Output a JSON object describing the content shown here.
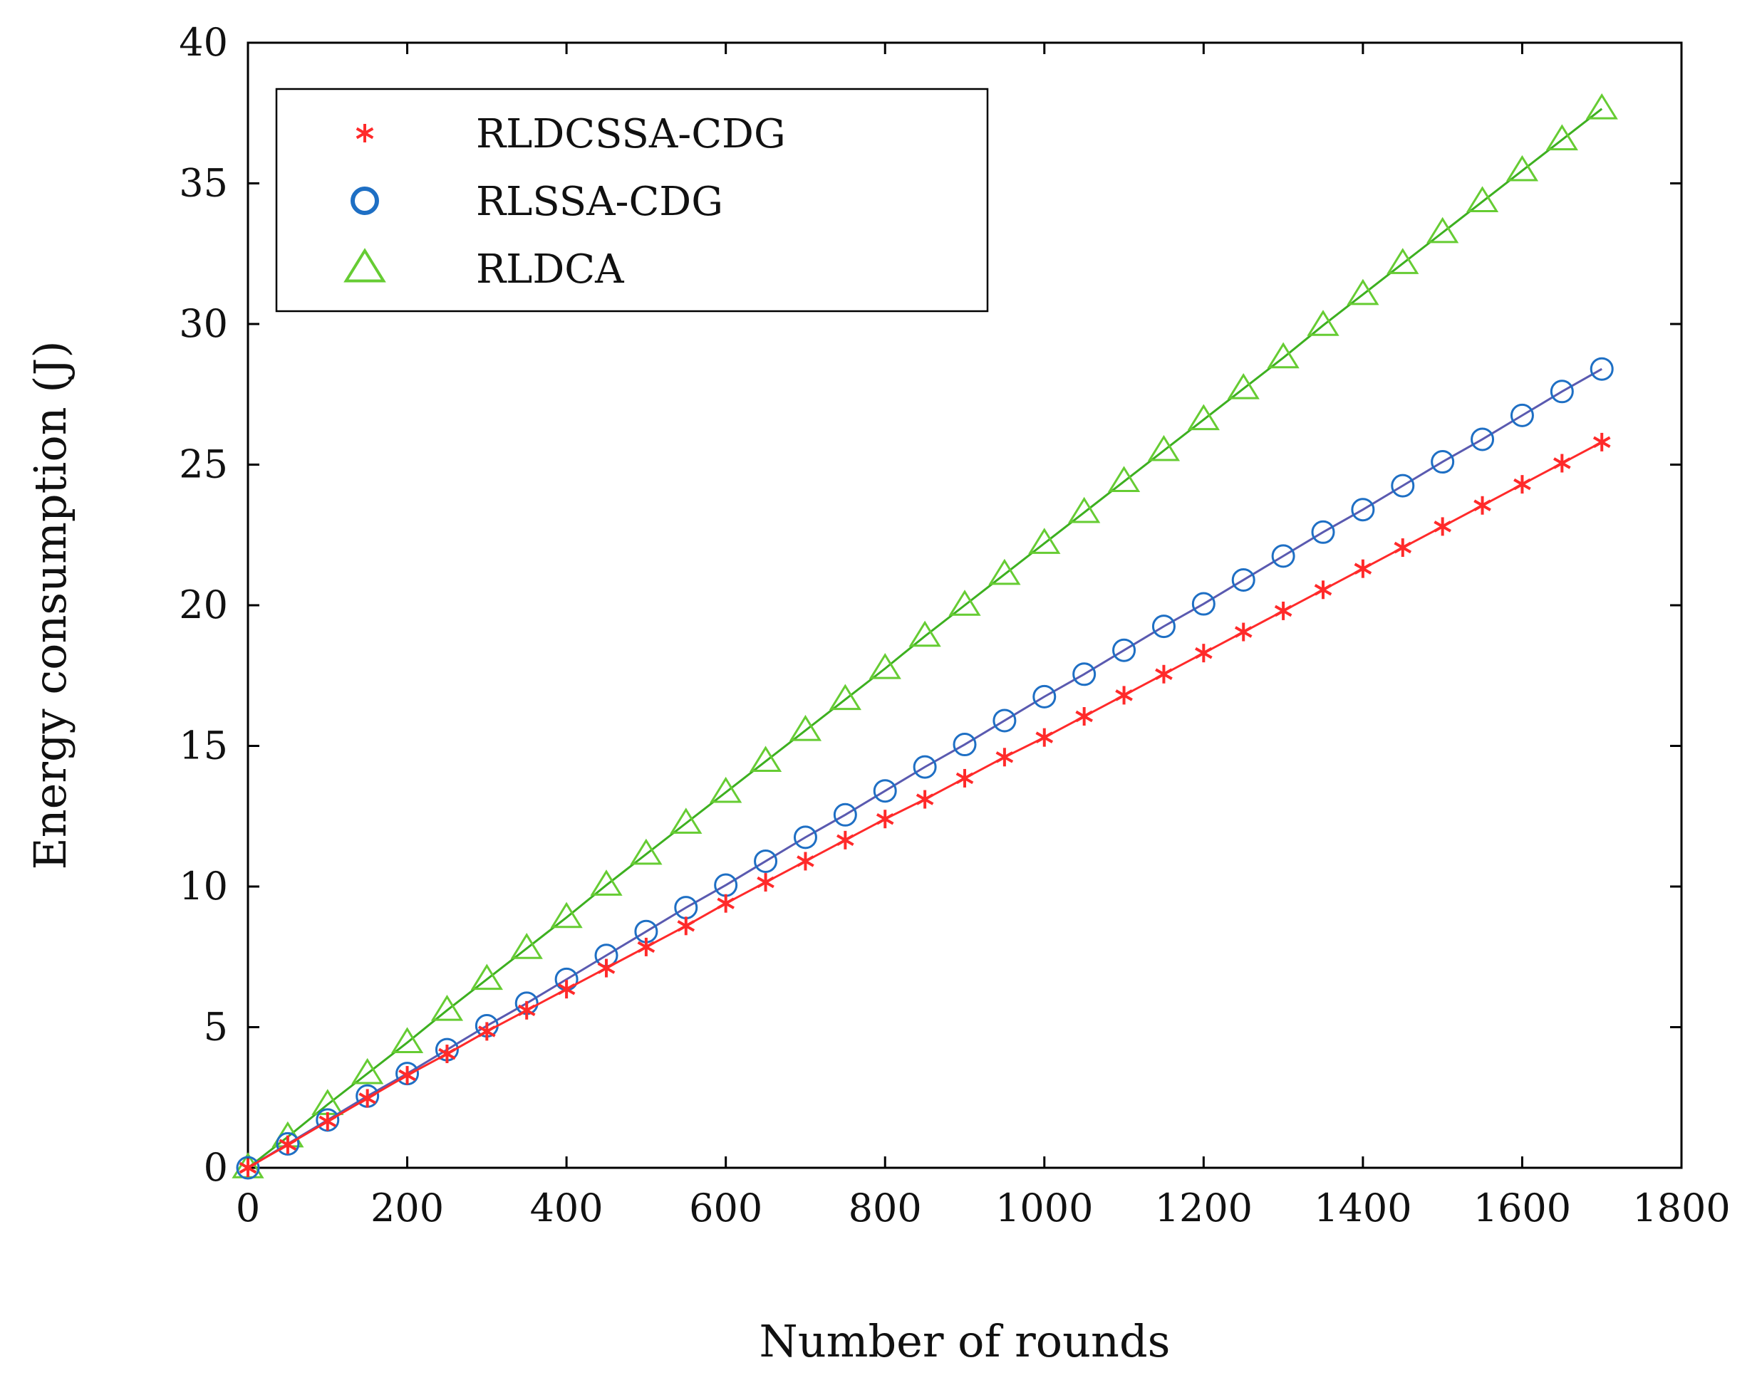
{
  "chart_data": {
    "type": "line",
    "title": "",
    "xlabel": "Number of rounds",
    "ylabel": "Energy consumption (J)",
    "xlim": [
      0,
      1800
    ],
    "ylim": [
      0,
      40
    ],
    "xticks": [
      "0",
      "200",
      "400",
      "600",
      "800",
      "1000",
      "1200",
      "1400",
      "1600",
      "1800"
    ],
    "yticks": [
      "0",
      "5",
      "10",
      "15",
      "20",
      "25",
      "30",
      "35",
      "40"
    ],
    "grid": false,
    "legend_position": "top-left",
    "x": [
      0,
      50,
      100,
      150,
      200,
      250,
      300,
      350,
      400,
      450,
      500,
      550,
      600,
      650,
      700,
      750,
      800,
      850,
      900,
      950,
      1000,
      1050,
      1100,
      1150,
      1200,
      1250,
      1300,
      1350,
      1400,
      1450,
      1500,
      1550,
      1600,
      1650,
      1700
    ],
    "series": [
      {
        "name": "RLDCSSA-CDG",
        "color": "#ff2a2a",
        "marker": "asterisk",
        "values": [
          0,
          0.82,
          1.65,
          2.47,
          3.29,
          4.05,
          4.85,
          5.6,
          6.35,
          7.1,
          7.85,
          8.6,
          9.4,
          10.15,
          10.9,
          11.65,
          12.4,
          13.1,
          13.85,
          14.6,
          15.3,
          16.05,
          16.8,
          17.55,
          18.3,
          19.05,
          19.8,
          20.55,
          21.3,
          22.05,
          22.8,
          23.55,
          24.3,
          25.05,
          25.8
        ]
      },
      {
        "name": "RLSSA-CDG",
        "color": "#1e6fc4",
        "line_color": "#5a5ab0",
        "marker": "circle",
        "values": [
          0,
          0.85,
          1.7,
          2.55,
          3.35,
          4.2,
          5.05,
          5.85,
          6.7,
          7.55,
          8.4,
          9.25,
          10.05,
          10.9,
          11.75,
          12.55,
          13.4,
          14.25,
          15.05,
          15.9,
          16.75,
          17.55,
          18.4,
          19.25,
          20.05,
          20.9,
          21.75,
          22.6,
          23.4,
          24.25,
          25.1,
          25.9,
          26.75,
          27.6,
          28.4
        ]
      },
      {
        "name": "RLDCA",
        "color": "#66cc33",
        "line_color": "#3db020",
        "marker": "triangle",
        "values": [
          0,
          1.1,
          2.25,
          3.35,
          4.45,
          5.6,
          6.7,
          7.8,
          8.9,
          10.05,
          11.15,
          12.25,
          13.35,
          14.45,
          15.55,
          16.65,
          17.75,
          18.9,
          20.0,
          21.1,
          22.2,
          23.3,
          24.4,
          25.5,
          26.6,
          27.7,
          28.8,
          29.95,
          31.05,
          32.15,
          33.25,
          34.35,
          35.45,
          36.55,
          37.65
        ]
      }
    ]
  }
}
